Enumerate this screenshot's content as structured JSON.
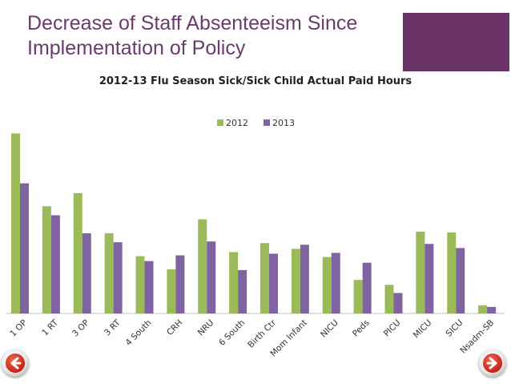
{
  "slide": {
    "title_line1": "Decrease of Staff Absenteeism Since",
    "title_line2": "Implementation of Policy",
    "accent_color": "#6a3466"
  },
  "nav": {
    "back_icon": "arrow-left-icon",
    "forward_icon": "arrow-right-icon"
  },
  "chart_data": {
    "type": "bar",
    "title": "2012-13 Flu Season Sick/Sick Child Actual Paid Hours",
    "legend_position": "top",
    "grid": false,
    "categories": [
      "1 OP",
      "1 RT",
      "3 OP",
      "3 RT",
      "4 South",
      "CRH",
      "NRU",
      "6 South",
      "Birth Ctr",
      "Mom Infant",
      "NICU",
      "Peds",
      "PICU",
      "MICU",
      "SICU",
      "Nsadm-SB"
    ],
    "series": [
      {
        "name": "2012",
        "color": "#9bbb59",
        "values": [
          220,
          131,
          147,
          98,
          70,
          54,
          115,
          75,
          86,
          79,
          69,
          41,
          35,
          100,
          99,
          10
        ]
      },
      {
        "name": "2013",
        "color": "#8064a2",
        "values": [
          159,
          120,
          98,
          87,
          64,
          71,
          88,
          53,
          73,
          84,
          74,
          62,
          25,
          85,
          80,
          8
        ]
      }
    ],
    "ylim": [
      0,
      240
    ]
  }
}
